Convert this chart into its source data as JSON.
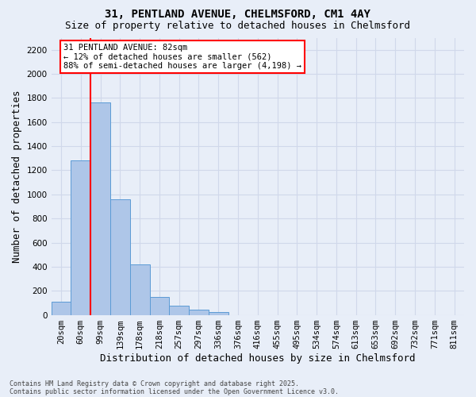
{
  "title_line1": "31, PENTLAND AVENUE, CHELMSFORD, CM1 4AY",
  "title_line2": "Size of property relative to detached houses in Chelmsford",
  "xlabel": "Distribution of detached houses by size in Chelmsford",
  "ylabel": "Number of detached properties",
  "footer_line1": "Contains HM Land Registry data © Crown copyright and database right 2025.",
  "footer_line2": "Contains public sector information licensed under the Open Government Licence v3.0.",
  "bin_labels": [
    "20sqm",
    "60sqm",
    "99sqm",
    "139sqm",
    "178sqm",
    "218sqm",
    "257sqm",
    "297sqm",
    "336sqm",
    "376sqm",
    "416sqm",
    "455sqm",
    "495sqm",
    "534sqm",
    "574sqm",
    "613sqm",
    "653sqm",
    "692sqm",
    "732sqm",
    "771sqm",
    "811sqm"
  ],
  "bar_values": [
    110,
    1280,
    1760,
    960,
    420,
    150,
    75,
    45,
    22,
    0,
    0,
    0,
    0,
    0,
    0,
    0,
    0,
    0,
    0,
    0,
    0
  ],
  "bar_color": "#aec6e8",
  "bar_edge_color": "#5b9bd5",
  "vline_color": "red",
  "vline_x": 1.5,
  "ylim": [
    0,
    2300
  ],
  "yticks": [
    0,
    200,
    400,
    600,
    800,
    1000,
    1200,
    1400,
    1600,
    1800,
    2000,
    2200
  ],
  "annotation_line1": "31 PENTLAND AVENUE: 82sqm",
  "annotation_line2": "← 12% of detached houses are smaller (562)",
  "annotation_line3": "88% of semi-detached houses are larger (4,198) →",
  "annotation_box_color": "white",
  "annotation_box_edge": "red",
  "bg_color": "#e8eef8",
  "grid_color": "#d0d8ea",
  "title_fontsize": 10,
  "subtitle_fontsize": 9,
  "axis_label_fontsize": 9,
  "tick_fontsize": 7.5,
  "annotation_fontsize": 7.5,
  "footer_fontsize": 6
}
